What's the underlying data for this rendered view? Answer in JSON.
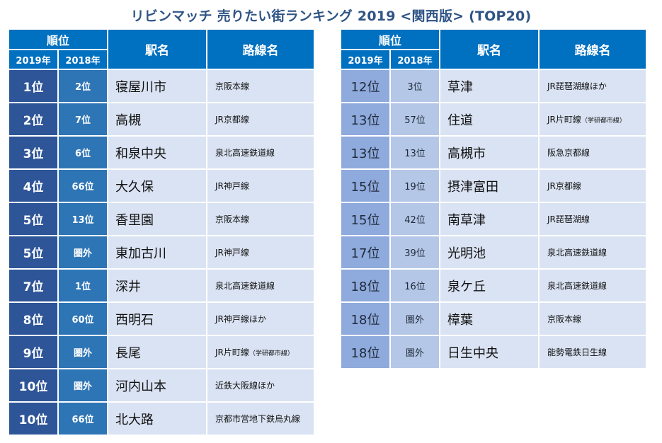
{
  "title": "リビンマッチ 売りたい街ランキング 2019 <関西版> (TOP20)",
  "headers": {
    "rank": "順位",
    "year_2019": "2019年",
    "year_2018": "2018年",
    "station": "駅名",
    "line": "路線名"
  },
  "left_rows": [
    {
      "rank_2019": "1位",
      "rank_2018": "2位",
      "station": "寝屋川市",
      "line": "京阪本線"
    },
    {
      "rank_2019": "2位",
      "rank_2018": "7位",
      "station": "高槻",
      "line": "JR京都線"
    },
    {
      "rank_2019": "3位",
      "rank_2018": "6位",
      "station": "和泉中央",
      "line": "泉北高速鉄道線"
    },
    {
      "rank_2019": "4位",
      "rank_2018": "66位",
      "station": "大久保",
      "line": "JR神戸線"
    },
    {
      "rank_2019": "5位",
      "rank_2018": "13位",
      "station": "香里園",
      "line": "京阪本線"
    },
    {
      "rank_2019": "5位",
      "rank_2018": "圏外",
      "station": "東加古川",
      "line": "JR神戸線"
    },
    {
      "rank_2019": "7位",
      "rank_2018": "1位",
      "station": "深井",
      "line": "泉北高速鉄道線"
    },
    {
      "rank_2019": "8位",
      "rank_2018": "60位",
      "station": "西明石",
      "line": "JR神戸線ほか"
    },
    {
      "rank_2019": "9位",
      "rank_2018": "圏外",
      "station": "長尾",
      "line": "JR片町線",
      "line_note": "（学研都市線）"
    },
    {
      "rank_2019": "10位",
      "rank_2018": "圏外",
      "station": "河内山本",
      "line": "近鉄大阪線ほか"
    },
    {
      "rank_2019": "10位",
      "rank_2018": "66位",
      "station": "北大路",
      "line": "京都市営地下鉄烏丸線"
    }
  ],
  "right_rows": [
    {
      "rank_2019": "12位",
      "rank_2018": "3位",
      "station": "草津",
      "line": "JR琵琶湖線ほか"
    },
    {
      "rank_2019": "13位",
      "rank_2018": "57位",
      "station": "住道",
      "line": "JR片町線",
      "line_note": "（学研都市線）"
    },
    {
      "rank_2019": "13位",
      "rank_2018": "13位",
      "station": "高槻市",
      "line": "阪急京都線"
    },
    {
      "rank_2019": "15位",
      "rank_2018": "19位",
      "station": "摂津富田",
      "line": "JR京都線"
    },
    {
      "rank_2019": "15位",
      "rank_2018": "42位",
      "station": "南草津",
      "line": "JR琵琶湖線"
    },
    {
      "rank_2019": "17位",
      "rank_2018": "39位",
      "station": "光明池",
      "line": "泉北高速鉄道線"
    },
    {
      "rank_2019": "18位",
      "rank_2018": "16位",
      "station": "泉ケ丘",
      "line": "泉北高速鉄道線"
    },
    {
      "rank_2019": "18位",
      "rank_2018": "圏外",
      "station": "樟葉",
      "line": "京阪本線"
    },
    {
      "rank_2019": "18位",
      "rank_2018": "圏外",
      "station": "日生中央",
      "line": "能勢電鉄日生線"
    }
  ],
  "colors": {
    "header_bg": "#0070c0",
    "title_text": "#2f5485",
    "left_rank2019_bg": "#2e5597",
    "left_rank2018_bg": "#2e75b6",
    "right_rank2019_bg": "#8faadc",
    "right_rank2018_bg": "#b4c7e7",
    "cell_bg": "#dae3f3"
  }
}
